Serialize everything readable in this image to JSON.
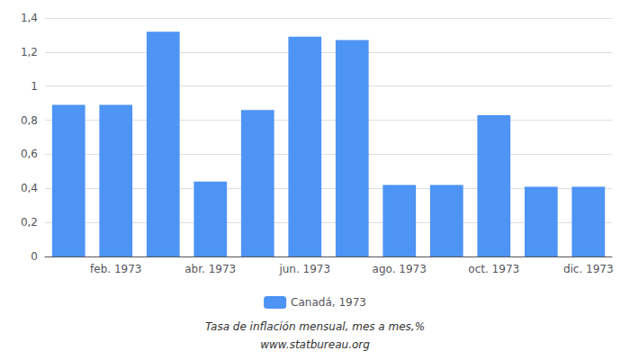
{
  "chart_data": {
    "type": "bar",
    "subtitle": "Tasa de inflación mensual, mes a mes,%",
    "source": "www.statbureau.org",
    "categories": [
      null,
      "feb. 1973",
      null,
      "abr. 1973",
      null,
      "jun. 1973",
      null,
      "ago. 1973",
      null,
      "oct. 1973",
      null,
      "dic. 1973"
    ],
    "series": [
      {
        "name": "Canadá, 1973",
        "color": "#4d94f5",
        "values": [
          0.89,
          0.89,
          1.32,
          0.44,
          0.86,
          1.29,
          1.27,
          0.42,
          0.42,
          0.83,
          0.41,
          0.41
        ]
      }
    ],
    "ylim": [
      0,
      1.4
    ],
    "yticks": [
      0,
      {
        "value": 0.2,
        "label": "0,2"
      },
      {
        "value": 0.4,
        "label": "0,4"
      },
      {
        "value": 0.6,
        "label": "0,6"
      },
      {
        "value": 0.8,
        "label": "0,8"
      },
      1,
      {
        "value": 1.2,
        "label": "1,2"
      },
      {
        "value": 1.4,
        "label": "1,4"
      }
    ],
    "grid": true,
    "legend": "bottom"
  }
}
